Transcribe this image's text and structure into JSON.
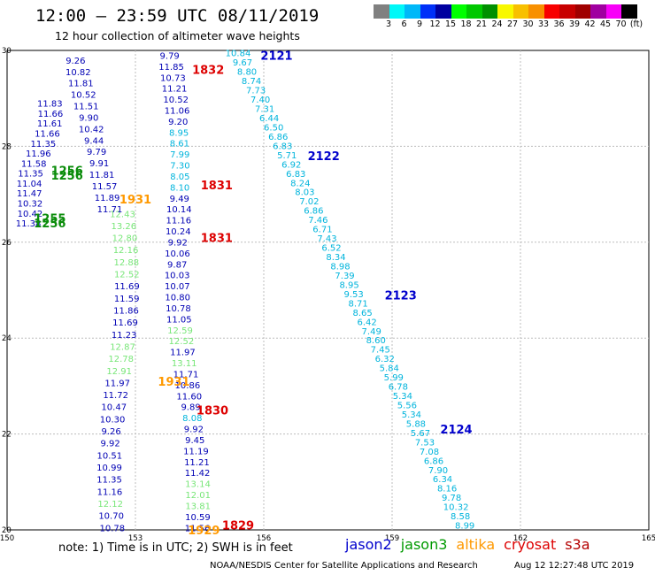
{
  "header": {
    "title": "12:00 – 23:59 UTC 08/11/2019",
    "subtitle": "12 hour collection of altimeter wave heights"
  },
  "legend": {
    "colors": [
      "#808080",
      "#00f8f8",
      "#00b8f8",
      "#0030f8",
      "#0000a0",
      "#00ff00",
      "#00c800",
      "#009000",
      "#f8f800",
      "#f8c000",
      "#f89000",
      "#f80000",
      "#c80000",
      "#a00000",
      "#a000a0",
      "#f800f8",
      "#000000"
    ],
    "labels": [
      "3",
      "6",
      "9",
      "12",
      "15",
      "18",
      "21",
      "24",
      "27",
      "30",
      "33",
      "36",
      "39",
      "42",
      "45",
      "70",
      "(ft)"
    ]
  },
  "map": {
    "x_ticks": [
      "150",
      "153",
      "156",
      "159",
      "162",
      "165"
    ],
    "y_ticks": [
      "30",
      "28",
      "26",
      "24",
      "22",
      "20"
    ],
    "lon_range": [
      150,
      165
    ],
    "lat_range": [
      20,
      30
    ],
    "colors": {
      "jason2": "#0000b4",
      "jason3": "#0a8c0a",
      "jason3_light": "#78e678",
      "altika": "#ff9900",
      "cryosat": "#dd0000",
      "s3a_dark": "#0000cc",
      "s3a_light": "#00b4dc"
    },
    "pass_labels": [
      {
        "text": "2121",
        "lon": 156.3,
        "lat": 29.9,
        "color": "s3a_dark"
      },
      {
        "text": "2122",
        "lon": 157.4,
        "lat": 27.8,
        "color": "s3a_dark"
      },
      {
        "text": "2123",
        "lon": 159.2,
        "lat": 24.9,
        "color": "s3a_dark"
      },
      {
        "text": "2124",
        "lon": 160.5,
        "lat": 22.1,
        "color": "s3a_dark"
      },
      {
        "text": "1832",
        "lon": 154.7,
        "lat": 29.6,
        "color": "cryosat"
      },
      {
        "text": "1831",
        "lon": 154.9,
        "lat": 27.2,
        "color": "cryosat"
      },
      {
        "text": "1831",
        "lon": 154.9,
        "lat": 26.1,
        "color": "cryosat"
      },
      {
        "text": "1830",
        "lon": 154.8,
        "lat": 22.5,
        "color": "cryosat"
      },
      {
        "text": "1829",
        "lon": 155.4,
        "lat": 20.1,
        "color": "cryosat"
      },
      {
        "text": "1931",
        "lon": 153.0,
        "lat": 26.9,
        "color": "altika"
      },
      {
        "text": "1931",
        "lon": 153.9,
        "lat": 23.1,
        "color": "altika"
      },
      {
        "text": "1929",
        "lon": 154.6,
        "lat": 20.0,
        "color": "altika"
      },
      {
        "text": "1256",
        "lon": 151.4,
        "lat": 27.5,
        "color": "jason3"
      },
      {
        "text": "1256",
        "lon": 151.4,
        "lat": 27.4,
        "color": "jason3"
      },
      {
        "text": "1255",
        "lon": 151.0,
        "lat": 26.5,
        "color": "jason3"
      },
      {
        "text": "1256",
        "lon": 151.0,
        "lat": 26.4,
        "color": "jason3"
      }
    ],
    "tracks": [
      {
        "color": "s3a_light",
        "lon0": 155.35,
        "lat0": 29.95,
        "lon1": 157.9,
        "lat1": 27.6,
        "values": [
          "10.84",
          "9.67",
          "8.80",
          "8.74",
          "7.73",
          "7.40",
          "7.31",
          "6.44",
          "6.50",
          "6.86",
          "6.83",
          "5.71",
          "6.92",
          "6.83",
          "8.24",
          "8.03",
          "7.02",
          "6.86",
          "7.46",
          "6.71",
          "7.43",
          "6.52",
          "8.34",
          "8.98",
          "7.39",
          "8.95",
          "9.53",
          "8.71",
          "8.65",
          "6.42",
          "7.49",
          "8.60",
          "7.45",
          "6.32",
          "5.84",
          "5.99",
          "6.78",
          "5.34",
          "5.56",
          "5.34",
          "5.88",
          "5.67",
          "7.53",
          "7.08",
          "6.86",
          "7.90",
          "6.34",
          "8.16",
          "9.78",
          "10.32",
          "8.58",
          "8.99"
        ],
        "lat_end": 20.1,
        "lon_end": 160.8
      },
      {
        "color": "jason2",
        "lon0": 152.8,
        "lat0": 29.8,
        "lon1": 153.3,
        "lat1": 20.0,
        "values": [
          "11.85",
          "10.73",
          "11.21",
          "10.52",
          "11.06",
          "9.20",
          "8.95",
          "8.61",
          "7.99",
          "7.30",
          "8.05",
          "8.10",
          "9.49",
          "10.14",
          "11.16",
          "10.24",
          "9.92",
          "10.06",
          "9.87",
          "10.03",
          "10.07",
          "10.80",
          "10.78",
          "11.05",
          "12.59",
          "12.52",
          "11.97",
          "13.11",
          "11.71",
          "10.86",
          "11.60",
          "9.89",
          "8.08",
          "9.92",
          "9.45",
          "11.19",
          "11.21",
          "11.42",
          "13.14",
          "12.01",
          "13.81",
          "10.59",
          "11.56"
        ],
        "lat_end": 20.0,
        "lon_end": 155.1
      }
    ],
    "jason2_left": [
      "9.79",
      "11.85",
      "10.73",
      "11.21",
      "10.52",
      "11.06",
      "9.20",
      "8.95",
      "8.61",
      "7.99",
      "7.30",
      "8.05",
      "8.10",
      "9.49",
      "10.14",
      "11.16",
      "10.24",
      "9.92",
      "10.06",
      "9.87",
      "10.03",
      "10.07",
      "10.80",
      "10.78",
      "11.05",
      "12.59",
      "12.52",
      "11.97",
      "13.11",
      "11.71",
      "10.86",
      "11.60",
      "9.89",
      "8.08",
      "9.92",
      "9.45",
      "11.19",
      "11.21",
      "11.42",
      "13.14",
      "12.01",
      "13.81",
      "10.59",
      "11.56"
    ],
    "left_col": [
      "12.43",
      "13.26",
      "12.80",
      "12.16",
      "12.88",
      "12.52",
      "11.69",
      "11.59",
      "11.86",
      "11.69",
      "11.23",
      "12.87",
      "12.78",
      "12.91",
      "11.97",
      "11.72",
      "10.47",
      "10.30",
      "9.26",
      "9.92",
      "10.51",
      "10.99",
      "11.35",
      "11.16",
      "12.12",
      "10.70",
      "10.78"
    ],
    "upper_cluster": [
      "9.26",
      "10.82",
      "11.81",
      "10.52",
      "11.51",
      "9.90",
      "10.42",
      "9.44",
      "9.79",
      "9.91",
      "11.81",
      "11.57",
      "11.89",
      "11.71"
    ],
    "dark_cluster": [
      "11.83",
      "11.66",
      "11.61",
      "11.66",
      "11.35",
      "11.96",
      "11.58",
      "11.35",
      "11.04",
      "11.47",
      "10.32",
      "10.42",
      "11.38"
    ]
  },
  "footer": {
    "note": "note: 1) Time is in UTC; 2) SWH is in feet",
    "satellites": [
      {
        "name": "jason2",
        "color": "#0000cc"
      },
      {
        "name": "jason3",
        "color": "#009900"
      },
      {
        "name": "altika",
        "color": "#ff9900"
      },
      {
        "name": "cryosat",
        "color": "#dd0000"
      },
      {
        "name": "s3a",
        "color": "#b40000"
      }
    ],
    "credit": "NOAA/NESDIS Center for Satellite Applications and Research",
    "timestamp": "Aug 12 12:27:48 UTC 2019"
  }
}
